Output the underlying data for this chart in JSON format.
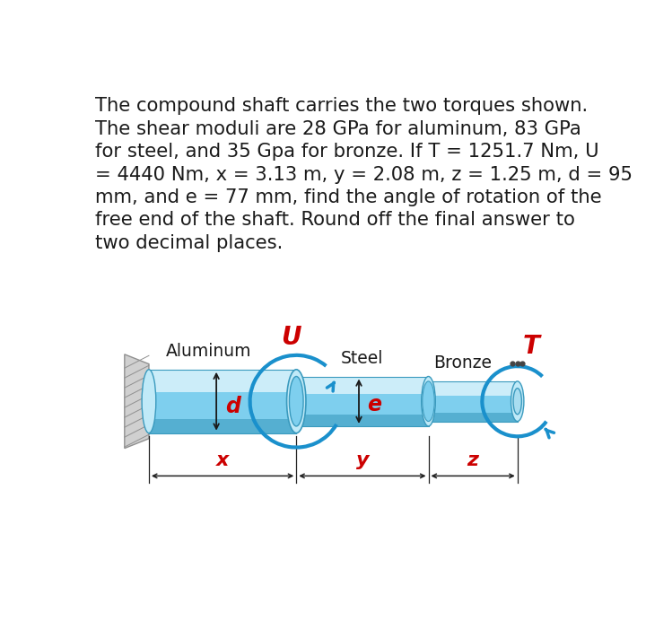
{
  "bg_color": "#ffffff",
  "text_color": "#1a1a1a",
  "red_color": "#cc0000",
  "blue_arrow": "#1a90cc",
  "shaft_mid": "#7ecfee",
  "shaft_light": "#c0eaf8",
  "shaft_dark": "#3a9abe",
  "shaft_highlight": "#daf3fc",
  "wall_light": "#d0d0d0",
  "wall_dark": "#909090",
  "label_aluminum": "Aluminum",
  "label_steel": "Steel",
  "label_bronze": "Bronze",
  "label_U": "U",
  "label_T": "T",
  "label_d": "d",
  "label_e": "e",
  "label_x": "x",
  "label_y": "y",
  "label_z": "z",
  "lines": [
    "The compound shaft carries the two torques shown.",
    "The shear moduli are 28 GPa for aluminum, 83 GPa",
    "for steel, and 35 Gpa for bronze. If T = 1251.7 Nm, U",
    "= 4440 Nm, x = 3.13 m, y = 2.08 m, z = 1.25 m, d = 95",
    "mm, and e = 77 mm, find the angle of rotation of the",
    "free end of the shaft. Round off the final answer to",
    "two decimal places."
  ]
}
